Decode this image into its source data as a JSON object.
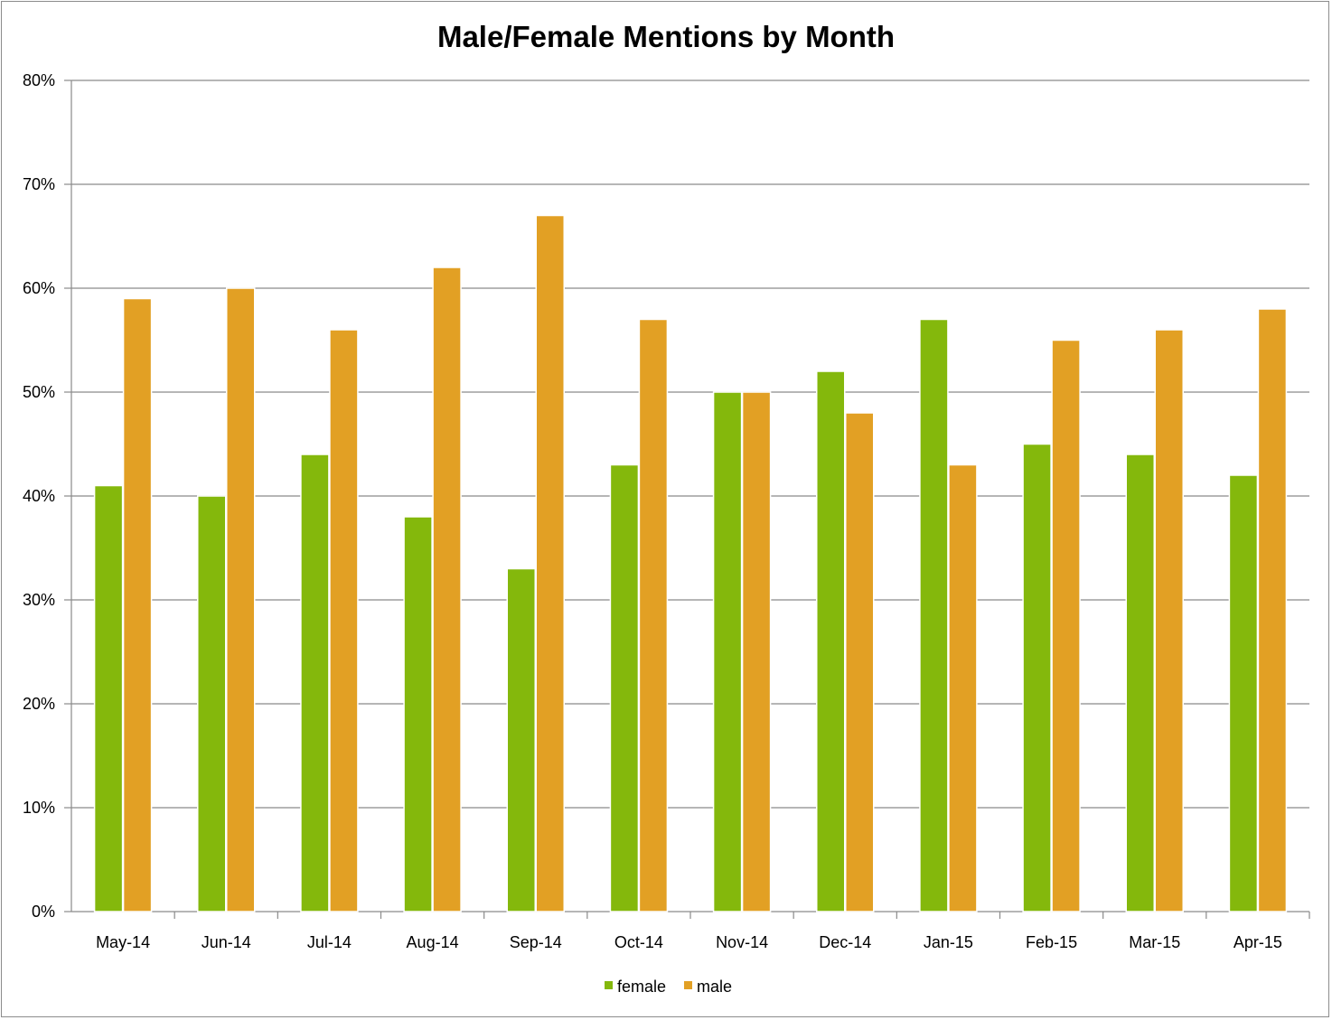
{
  "chart_data": {
    "type": "bar",
    "title": "Male/Female Mentions by Month",
    "xlabel": "",
    "ylabel": "",
    "categories": [
      "May-14",
      "Jun-14",
      "Jul-14",
      "Aug-14",
      "Sep-14",
      "Oct-14",
      "Nov-14",
      "Dec-14",
      "Jan-15",
      "Feb-15",
      "Mar-15",
      "Apr-15"
    ],
    "series": [
      {
        "name": "female",
        "color": "#84b80c",
        "values": [
          41,
          40,
          44,
          38,
          33,
          43,
          50,
          52,
          57,
          45,
          44,
          42
        ]
      },
      {
        "name": "male",
        "color": "#e2a024",
        "values": [
          59,
          60,
          56,
          62,
          67,
          57,
          50,
          48,
          43,
          55,
          56,
          58
        ]
      }
    ],
    "ylim": [
      0,
      80
    ],
    "yticks": [
      0,
      10,
      20,
      30,
      40,
      50,
      60,
      70,
      80
    ],
    "ytick_format": "{v}%",
    "grid": true,
    "legend_position": "bottom-center"
  }
}
